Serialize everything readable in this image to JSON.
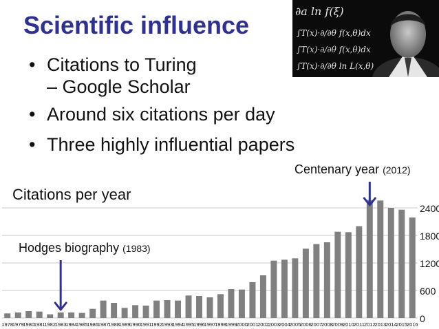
{
  "slide": {
    "title": "Scientific influence",
    "bullets": [
      {
        "text": "Citations to Turing",
        "sub": "– Google Scholar"
      },
      {
        "text": "Around six citations per day"
      },
      {
        "text": "Three highly influential papers"
      }
    ]
  },
  "annotations": {
    "centenary": {
      "label": "Centenary year",
      "year": "(2012)"
    },
    "hodges": {
      "label": "Hodges biography",
      "year": "(1983)"
    }
  },
  "colors": {
    "title": "#2e3192",
    "bar": "#808080",
    "arrow": "#2e3192"
  },
  "icons": {
    "bullet": "•"
  },
  "chart_data": {
    "type": "bar",
    "title": "Citations per year",
    "categories": [
      "1978",
      "1979",
      "1980",
      "1981",
      "1982",
      "1983",
      "1984",
      "1985",
      "1986",
      "1987",
      "1988",
      "1989",
      "1990",
      "1991",
      "1992",
      "1993",
      "1994",
      "1995",
      "1996",
      "1997",
      "1998",
      "1999",
      "2000",
      "2001",
      "2002",
      "2003",
      "2004",
      "2005",
      "2006",
      "2007",
      "2008",
      "2009",
      "2010",
      "2011",
      "2012",
      "2013",
      "2014",
      "2015",
      "2016"
    ],
    "values": [
      100,
      120,
      150,
      140,
      80,
      120,
      120,
      110,
      200,
      380,
      330,
      220,
      280,
      270,
      380,
      390,
      380,
      490,
      480,
      450,
      520,
      630,
      620,
      780,
      930,
      1250,
      1270,
      1300,
      1510,
      1610,
      1650,
      1880,
      1870,
      2000,
      2570,
      2560,
      2400,
      2360,
      2190
    ],
    "yticks": [
      0,
      600,
      1200,
      1800,
      2400
    ],
    "ylim": [
      0,
      2700
    ],
    "grid": true,
    "yaxis_side": "right",
    "xlabel": "",
    "ylabel": ""
  }
}
